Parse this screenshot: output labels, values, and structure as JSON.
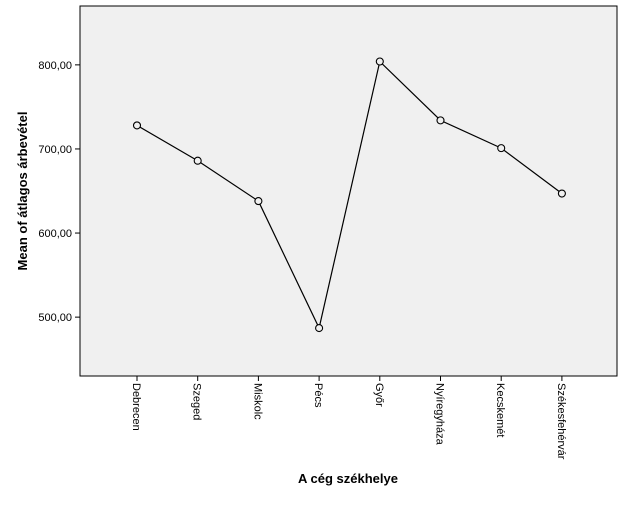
{
  "chart_data": {
    "type": "line",
    "title": "",
    "xlabel": "A cég székhelye",
    "ylabel": "Mean of átlagos árbevétel",
    "categories": [
      "Debrecen",
      "Szeged",
      "Miskolc",
      "Pécs",
      "Győr",
      "Nyíregyháza",
      "Kecskemét",
      "Székesfehérvár"
    ],
    "series": [
      {
        "values": [
          728,
          686,
          638,
          487,
          804,
          734,
          701,
          647
        ]
      }
    ],
    "yticks": [
      500,
      600,
      700,
      800
    ],
    "ytick_labels": [
      "500,00",
      "600,00",
      "700,00",
      "800,00"
    ],
    "ylim": [
      430,
      870
    ],
    "grid": false,
    "legend": "none",
    "colors": {
      "plot_background": "#f0f0f0",
      "line": "#000000",
      "marker_fill": "#f0f0f0",
      "axis": "#000000"
    }
  }
}
